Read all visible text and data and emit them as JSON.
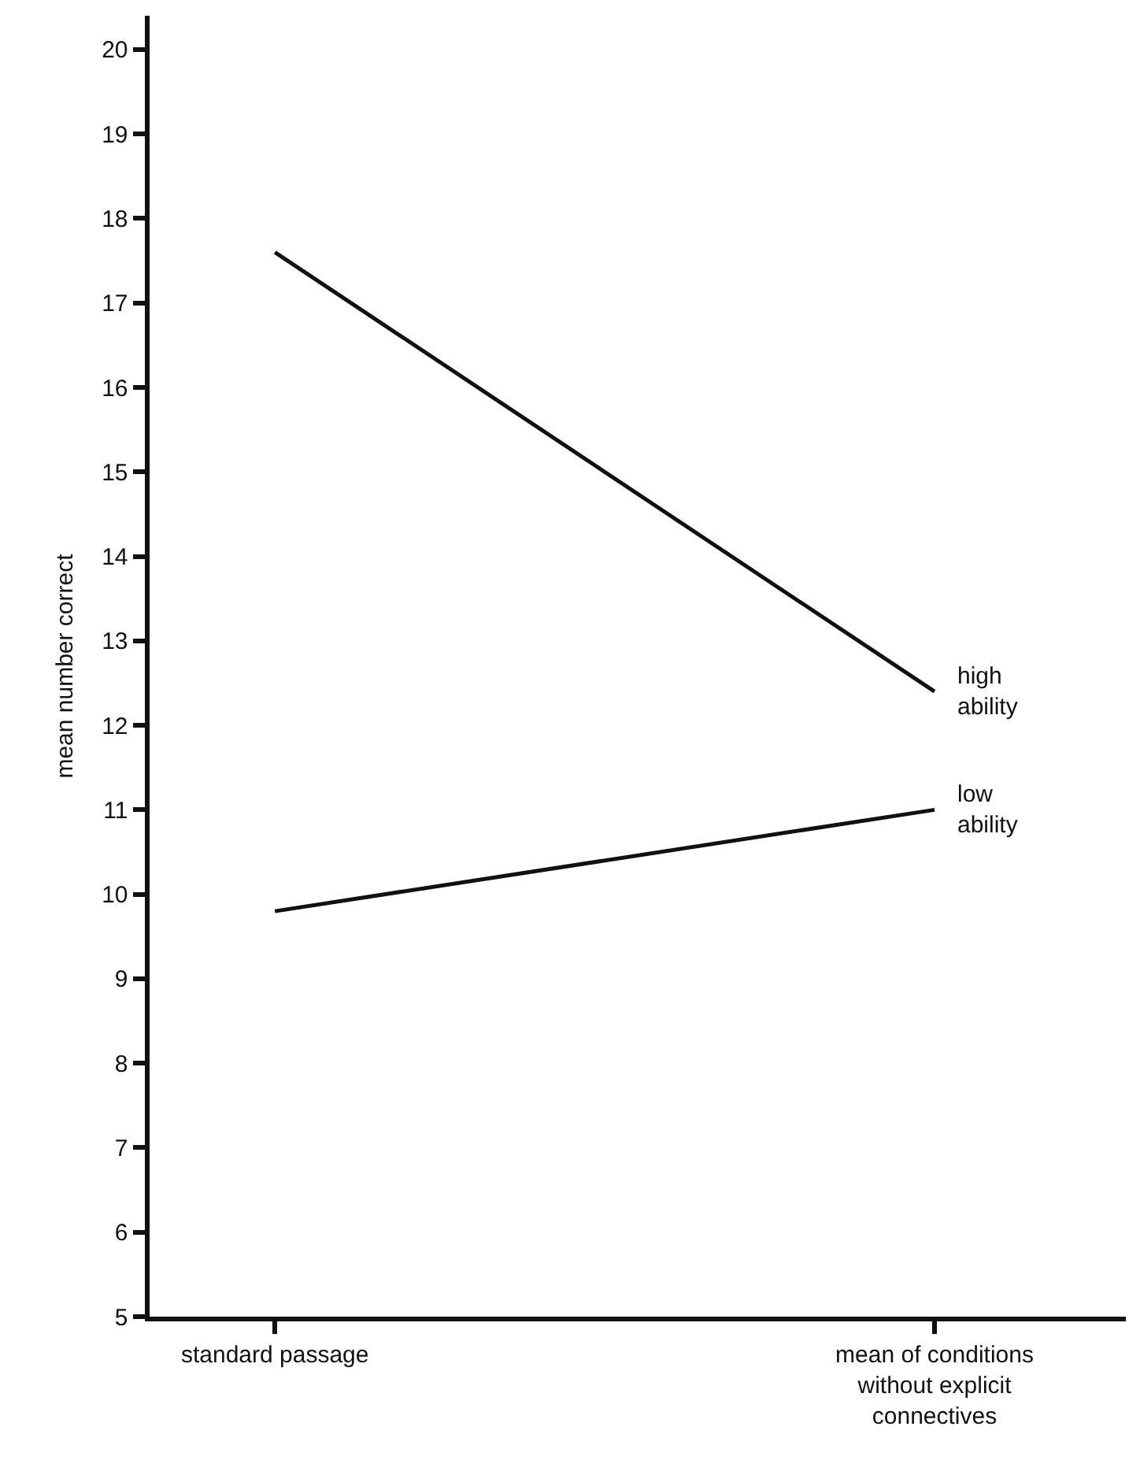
{
  "chart_data": {
    "type": "line",
    "ylabel": "mean number correct",
    "categories": [
      "standard passage",
      "mean of conditions without explicit connectives"
    ],
    "series": [
      {
        "name": "high ability",
        "color": "#111111",
        "values": [
          17.6,
          12.4
        ]
      },
      {
        "name": "low ability",
        "color": "#111111",
        "values": [
          9.8,
          11.0
        ]
      }
    ],
    "ylim": [
      5,
      20.4
    ],
    "yticks": [
      5,
      6,
      7,
      8,
      9,
      10,
      11,
      12,
      13,
      14,
      15,
      16,
      17,
      18,
      19,
      20
    ],
    "legend": false,
    "marker": "none",
    "line_style": "solid"
  }
}
